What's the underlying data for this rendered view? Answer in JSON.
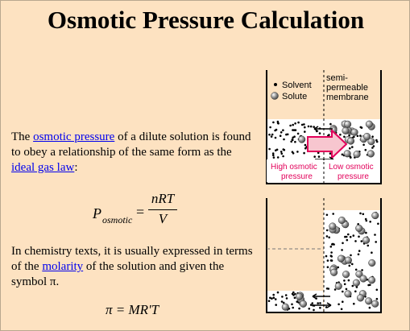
{
  "title": "Osmotic Pressure Calculation",
  "paragraph1": {
    "before": "The ",
    "link1": "osmotic pressure",
    "middle": " of a dilute solution is found to obey a relationship of the same form as the ",
    "link2": "ideal gas law",
    "after": ":"
  },
  "equation1": {
    "lhs_symbol": "P",
    "lhs_subscript": "osmotic",
    "equals": "=",
    "numerator": "nRT",
    "denominator": "V"
  },
  "paragraph2": {
    "before": "In chemistry texts, it is usually expressed in terms of the ",
    "link": "molarity",
    "after": " of the solution and given the symbol π."
  },
  "equation2": "π = MR'T",
  "diagram": {
    "legend": {
      "solvent": "Solvent",
      "solute": "Solute",
      "membrane_line1": "semi-",
      "membrane_line2": "permeable",
      "membrane_line3": "membrane"
    },
    "left_label_line1": "High osmotic",
    "left_label_line2": "pressure",
    "right_label_line1": "Low osmotic",
    "right_label_line2": "pressure",
    "colors": {
      "background": "#fde2c1",
      "link": "#0000ee",
      "arrow_fill": "#f7c6cf",
      "arrow_stroke": "#e2005a",
      "label_text": "#e2005a",
      "solute": "#888888"
    }
  }
}
